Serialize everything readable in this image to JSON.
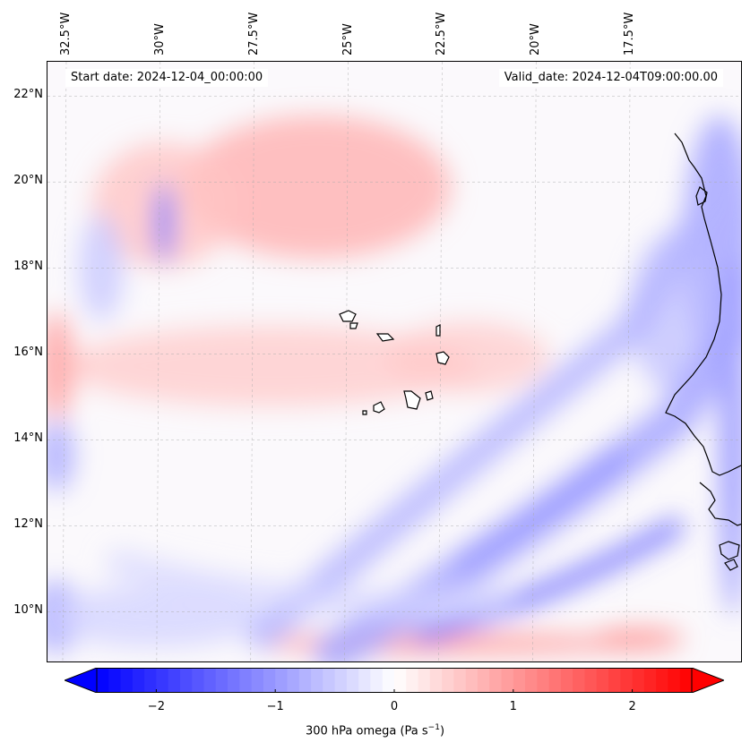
{
  "map": {
    "type": "filled-contour-map",
    "variable": "300 hPa omega",
    "units": "Pa s⁻¹",
    "extent": {
      "lon_min": -33.0,
      "lon_max": -14.5,
      "lat_min": 8.8,
      "lat_max": 22.8
    },
    "gridlines": true,
    "lon_ticks": [
      {
        "value": -32.5,
        "label": "32.5°W"
      },
      {
        "value": -30.0,
        "label": "30°W"
      },
      {
        "value": -27.5,
        "label": "27.5°W"
      },
      {
        "value": -25.0,
        "label": "25°W"
      },
      {
        "value": -22.5,
        "label": "22.5°W"
      },
      {
        "value": -20.0,
        "label": "20°W"
      },
      {
        "value": -17.5,
        "label": "17.5°W"
      }
    ],
    "lat_ticks": [
      {
        "value": 22,
        "label": "22°N"
      },
      {
        "value": 20,
        "label": "20°N"
      },
      {
        "value": 18,
        "label": "18°N"
      },
      {
        "value": 16,
        "label": "16°N"
      },
      {
        "value": 14,
        "label": "14°N"
      },
      {
        "value": 12,
        "label": "12°N"
      },
      {
        "value": 10,
        "label": "10°N"
      }
    ],
    "start_date": "Start date: 2024-12-04_00:00:00",
    "valid_date": "Valid_date: 2024-12-04T09:00:00.00",
    "colors": {
      "negative": "#0000ff",
      "zero": "#ffffff",
      "positive": "#ff0000"
    }
  },
  "colorbar": {
    "vmin": -2.5,
    "vmax": 2.5,
    "ticks": [
      {
        "value": -2,
        "label": "−2"
      },
      {
        "value": -1,
        "label": "−1"
      },
      {
        "value": 0,
        "label": "0"
      },
      {
        "value": 1,
        "label": "1"
      },
      {
        "value": 2,
        "label": "2"
      }
    ],
    "label_text": "300 hPa omega (Pa s",
    "label_exp": "−1",
    "label_close": ")"
  }
}
